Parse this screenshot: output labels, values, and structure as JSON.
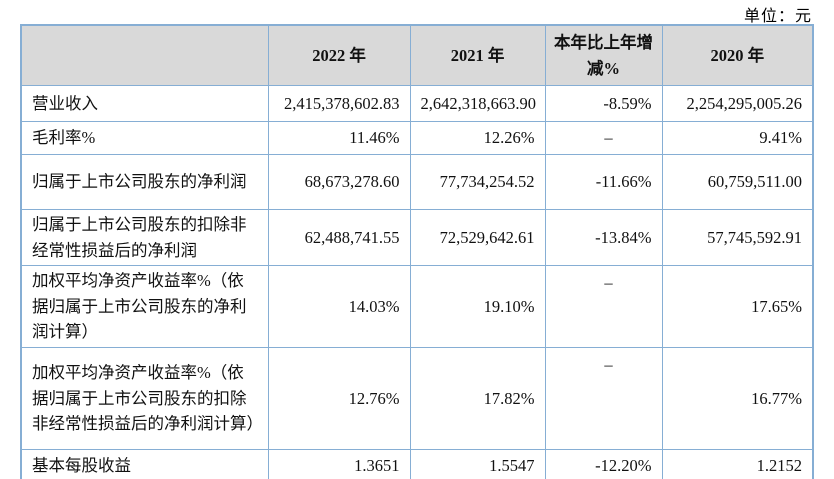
{
  "unit_label": "单位：元",
  "table": {
    "headers": [
      "",
      "2022 年",
      "2021 年",
      "本年比上年增减%",
      "2020 年"
    ],
    "rows": [
      {
        "label": "营业收入",
        "y2022": "2,415,378,602.83",
        "y2021": "2,642,318,663.90",
        "change": "-8.59%",
        "y2020": "2,254,295,005.26"
      },
      {
        "label": "毛利率%",
        "y2022": "11.46%",
        "y2021": "12.26%",
        "change": "–",
        "y2020": "9.41%"
      },
      {
        "label": "归属于上市公司股东的净利润",
        "y2022": "68,673,278.60",
        "y2021": "77,734,254.52",
        "change": "-11.66%",
        "y2020": "60,759,511.00"
      },
      {
        "label": "归属于上市公司股东的扣除非经常性损益后的净利润",
        "y2022": "62,488,741.55",
        "y2021": "72,529,642.61",
        "change": "-13.84%",
        "y2020": "57,745,592.91"
      },
      {
        "label": "加权平均净资产收益率%（依据归属于上市公司股东的净利润计算）",
        "y2022": "14.03%",
        "y2021": "19.10%",
        "change": "–",
        "y2020": "17.65%"
      },
      {
        "label": "加权平均净资产收益率%（依据归属于上市公司股东的扣除非经常性损益后的净利润计算）",
        "y2022": "12.76%",
        "y2021": "17.82%",
        "change": "–",
        "y2020": "16.77%"
      },
      {
        "label": "基本每股收益",
        "y2022": "1.3651",
        "y2021": "1.5547",
        "change": "-12.20%",
        "y2020": "1.2152"
      }
    ]
  }
}
